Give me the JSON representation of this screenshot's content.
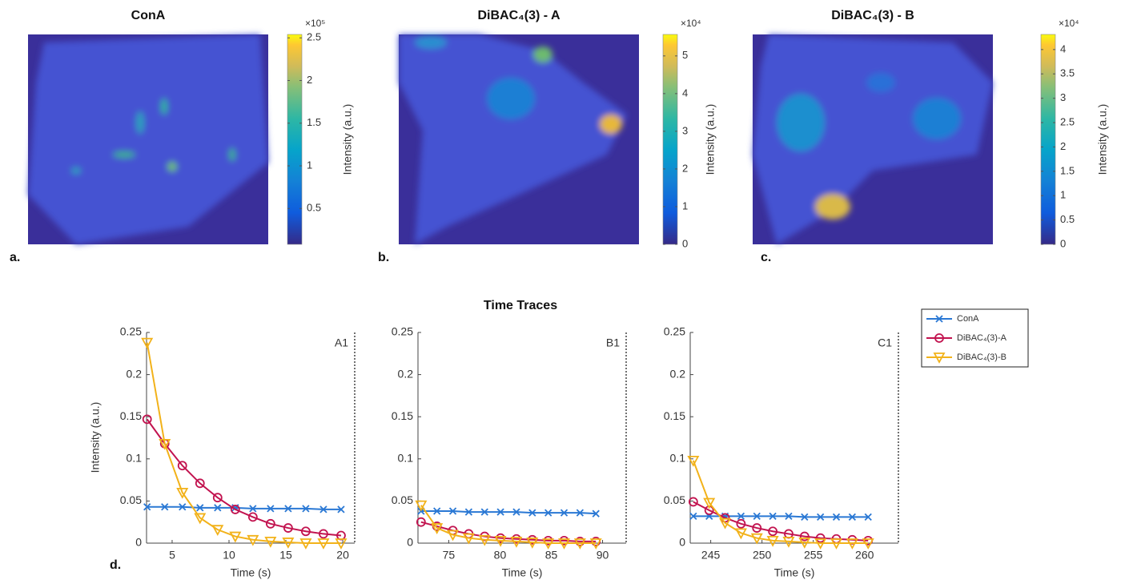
{
  "chart_data": [
    {
      "type": "image",
      "title": "ConA",
      "label": "a.",
      "colorbar_label": "Intensity (a.u.)",
      "colorbar_exponent": "×10⁵",
      "clim": [
        0.08,
        2.54
      ],
      "cticks": [
        0.5,
        1,
        1.5,
        2,
        2.5
      ]
    },
    {
      "type": "image",
      "title": "DiBAC₄(3) - A",
      "label": "b.",
      "colorbar_label": "Intensity (a.u.)",
      "colorbar_exponent": "×10⁴",
      "clim": [
        0,
        5.57
      ],
      "cticks": [
        0,
        1,
        2,
        3,
        4,
        5
      ]
    },
    {
      "type": "image",
      "title": "DiBAC₄(3) - B",
      "label": "c.",
      "colorbar_label": "Intensity (a.u.)",
      "colorbar_exponent": "×10⁴",
      "clim": [
        0,
        4.31
      ],
      "cticks": [
        0,
        0.5,
        1,
        1.5,
        2,
        2.5,
        3,
        3.5,
        4
      ]
    },
    {
      "type": "line",
      "title": "Time Traces",
      "label": "d.",
      "ylabel": "Intensity (a.u.)",
      "xlabel": "Time (s)",
      "ylim": [
        0,
        0.25
      ],
      "yticks": [
        0,
        0.05,
        0.1,
        0.15,
        0.2,
        0.25
      ],
      "series": [
        {
          "name": "ConA",
          "color": "#2a78d4",
          "marker": "x"
        },
        {
          "name": "DiBAC₄(3)-A",
          "color": "#c2134f",
          "marker": "circle"
        },
        {
          "name": "DiBAC₄(3)-B",
          "color": "#f2b21a",
          "marker": "triangle-down"
        }
      ],
      "panels": [
        {
          "annotation": "A1",
          "xlim": [
            2.75,
            21.05
          ],
          "xticks": [
            5,
            10,
            15,
            20
          ],
          "x": [
            2.8,
            4.35,
            5.9,
            7.45,
            9.0,
            10.55,
            12.1,
            13.65,
            15.2,
            16.75,
            18.3,
            19.85
          ],
          "values": [
            [
              0.043,
              0.043,
              0.043,
              0.042,
              0.042,
              0.042,
              0.041,
              0.041,
              0.041,
              0.041,
              0.04,
              0.04
            ],
            [
              0.147,
              0.118,
              0.092,
              0.071,
              0.054,
              0.04,
              0.031,
              0.023,
              0.018,
              0.014,
              0.011,
              0.009
            ],
            [
              0.238,
              0.118,
              0.06,
              0.03,
              0.016,
              0.008,
              0.004,
              0.002,
              0.001,
              0,
              0,
              0
            ]
          ]
        },
        {
          "annotation": "B1",
          "xlim": [
            72,
            92.3
          ],
          "xticks": [
            75,
            80,
            85,
            90
          ],
          "x": [
            72.3,
            73.85,
            75.4,
            76.95,
            78.5,
            80.05,
            81.6,
            83.15,
            84.7,
            86.25,
            87.8,
            89.35
          ],
          "values": [
            [
              0.038,
              0.038,
              0.038,
              0.037,
              0.037,
              0.037,
              0.037,
              0.036,
              0.036,
              0.036,
              0.036,
              0.035
            ],
            [
              0.025,
              0.02,
              0.015,
              0.011,
              0.008,
              0.006,
              0.005,
              0.004,
              0.003,
              0.003,
              0.002,
              0.002
            ],
            [
              0.045,
              0.018,
              0.01,
              0.006,
              0.004,
              0.003,
              0.002,
              0.001,
              0,
              0,
              0,
              0
            ]
          ]
        },
        {
          "annotation": "C1",
          "xlim": [
            243,
            263.3
          ],
          "xticks": [
            245,
            250,
            255,
            260
          ],
          "x": [
            243.3,
            244.85,
            246.4,
            247.95,
            249.5,
            251.05,
            252.6,
            254.15,
            255.7,
            257.25,
            258.8,
            260.35
          ],
          "values": [
            [
              0.032,
              0.032,
              0.032,
              0.032,
              0.032,
              0.032,
              0.032,
              0.031,
              0.031,
              0.031,
              0.031,
              0.031
            ],
            [
              0.049,
              0.039,
              0.03,
              0.023,
              0.018,
              0.014,
              0.011,
              0.008,
              0.006,
              0.005,
              0.004,
              0.003
            ],
            [
              0.098,
              0.048,
              0.024,
              0.012,
              0.006,
              0.003,
              0.002,
              0.001,
              0,
              0,
              0,
              0
            ]
          ]
        }
      ]
    }
  ]
}
